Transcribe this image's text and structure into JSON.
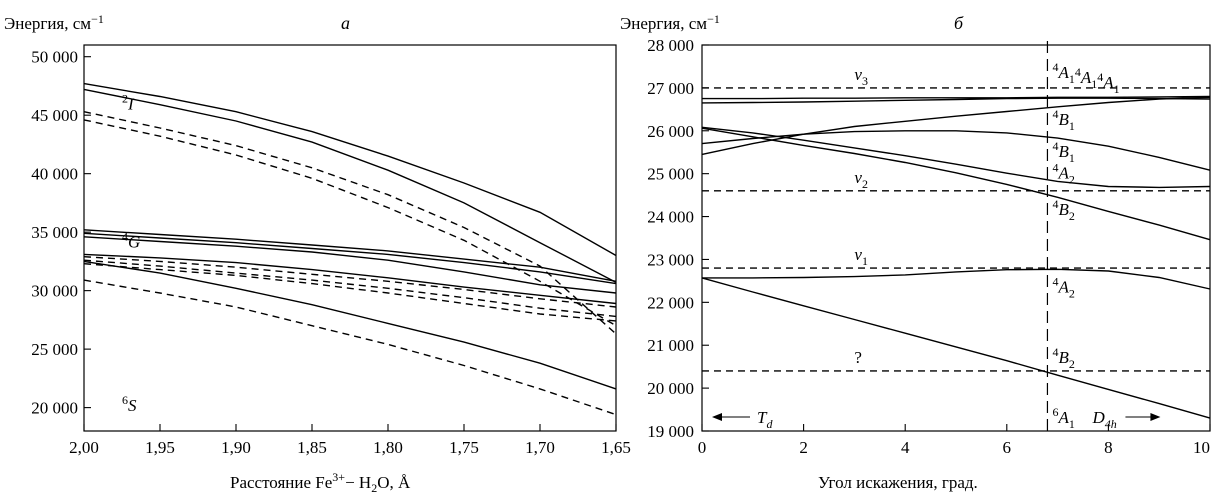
{
  "chart_data": [
    {
      "type": "line",
      "panel_label": "а",
      "ylabel_main": "Энергия, см",
      "ylabel_sup": "−1",
      "xlabel_parts": [
        "Расстояние Fe",
        "3+",
        "− H",
        "2",
        "O, Å"
      ],
      "x_reversed": true,
      "xlim": [
        2.0,
        1.65
      ],
      "ylim": [
        18000,
        51000
      ],
      "x_ticks": [
        2.0,
        1.95,
        1.9,
        1.85,
        1.8,
        1.75,
        1.7,
        1.65
      ],
      "x_tick_labels": [
        "2,00",
        "1,95",
        "1,90",
        "1,85",
        "1,80",
        "1,75",
        "1,70",
        "1,65"
      ],
      "y_ticks": [
        20000,
        25000,
        30000,
        35000,
        40000,
        45000,
        50000
      ],
      "y_tick_labels": [
        "20 000",
        "25 000",
        "30 000",
        "35 000",
        "40 000",
        "45 000",
        "50 000"
      ],
      "annotations": [
        {
          "sup": "2",
          "text": "I",
          "x": 1.975,
          "y": 45500
        },
        {
          "sup": "4",
          "text": "G",
          "x": 1.975,
          "y": 33700
        },
        {
          "sup": "6",
          "text": "S",
          "x": 1.975,
          "y": 19700
        }
      ],
      "x": [
        2.0,
        1.95,
        1.9,
        1.85,
        1.8,
        1.75,
        1.7,
        1.65
      ],
      "series": [
        {
          "style": "solid",
          "values": [
            47700,
            46600,
            45300,
            43600,
            41500,
            39200,
            36700,
            33000
          ]
        },
        {
          "style": "solid",
          "values": [
            47200,
            45900,
            44500,
            42700,
            40300,
            37500,
            34100,
            30700
          ]
        },
        {
          "style": "dashed",
          "values": [
            45300,
            43900,
            42400,
            40500,
            38200,
            35400,
            32100,
            26300
          ]
        },
        {
          "style": "dashed",
          "values": [
            44600,
            43200,
            41600,
            39600,
            37100,
            34300,
            30800,
            27000
          ]
        },
        {
          "style": "solid",
          "values": [
            35200,
            34800,
            34400,
            33900,
            33400,
            32700,
            32000,
            30800
          ]
        },
        {
          "style": "solid",
          "values": [
            34900,
            34500,
            34100,
            33600,
            33100,
            32400,
            31600,
            30600
          ]
        },
        {
          "style": "solid",
          "values": [
            34600,
            34200,
            33800,
            33300,
            32600,
            31600,
            30500,
            29800
          ]
        },
        {
          "style": "solid",
          "values": [
            33100,
            32800,
            32400,
            31800,
            31100,
            30300,
            29600,
            28900
          ]
        },
        {
          "style": "dashed",
          "values": [
            32900,
            32500,
            32000,
            31400,
            30800,
            30100,
            29300,
            28600
          ]
        },
        {
          "style": "dashed",
          "values": [
            32600,
            32100,
            31500,
            30900,
            30200,
            29400,
            28500,
            27800
          ]
        },
        {
          "style": "dashed",
          "values": [
            32300,
            31800,
            31300,
            30600,
            29800,
            28900,
            28000,
            27400
          ]
        },
        {
          "style": "solid",
          "values": [
            32500,
            31500,
            30200,
            28800,
            27200,
            25600,
            23800,
            21600
          ]
        },
        {
          "style": "dashed",
          "values": [
            30900,
            29800,
            28600,
            27000,
            25400,
            23600,
            21600,
            19400
          ]
        }
      ]
    },
    {
      "type": "line",
      "panel_label": "б",
      "ylabel_main": "Энергия, см",
      "ylabel_sup": "−1",
      "xlabel": "Угол искажения, град.",
      "xlim": [
        0,
        10
      ],
      "ylim": [
        19000,
        28000
      ],
      "x_ticks": [
        0,
        2,
        4,
        6,
        8,
        10
      ],
      "x_tick_labels": [
        "0",
        "2",
        "4",
        "6",
        "8",
        "10"
      ],
      "y_ticks": [
        19000,
        20000,
        21000,
        22000,
        23000,
        24000,
        25000,
        26000,
        27000,
        28000
      ],
      "y_tick_labels": [
        "19 000",
        "20 000",
        "21 000",
        "22 000",
        "23 000",
        "24 000",
        "25 000",
        "26 000",
        "27 000",
        "28 000"
      ],
      "vline_x": 6.8,
      "hlines": [
        {
          "y": 27000,
          "label": "v",
          "sub": "3",
          "x": 3.0
        },
        {
          "y": 24600,
          "label": "v",
          "sub": "2",
          "x": 3.0
        },
        {
          "y": 22800,
          "label": "v",
          "sub": "1",
          "x": 3.0
        },
        {
          "y": 20400,
          "label": "?",
          "sub": "",
          "x": 3.0
        }
      ],
      "term_labels": [
        {
          "parts": [
            [
              "4",
              "A",
              "1"
            ],
            [
              "4",
              "A",
              "1"
            ],
            [
              "4",
              "A",
              "1"
            ]
          ],
          "y": 27350
        },
        {
          "parts": [
            [
              "4",
              "B",
              "1"
            ]
          ],
          "y": 26250
        },
        {
          "parts": [
            [
              "4",
              "B",
              "1"
            ]
          ],
          "y": 25500
        },
        {
          "parts": [
            [
              "4",
              "A",
              "2"
            ]
          ],
          "y": 25000
        },
        {
          "parts": [
            [
              "4",
              "B",
              "2"
            ]
          ],
          "y": 24150
        },
        {
          "parts": [
            [
              "4",
              "A",
              "2"
            ]
          ],
          "y": 22350
        },
        {
          "parts": [
            [
              "4",
              "B",
              "2"
            ]
          ],
          "y": 20700
        },
        {
          "parts": [
            [
              "6",
              "A",
              "1"
            ]
          ],
          "y": 19300
        }
      ],
      "symmetry_left": {
        "text": "T",
        "sub": "d"
      },
      "symmetry_right": {
        "text": "D",
        "sub": "4h"
      },
      "x": [
        0,
        1,
        2,
        3,
        4,
        5,
        6,
        7,
        8,
        9,
        10
      ],
      "series": [
        {
          "style": "solid",
          "values": [
            26750,
            26750,
            26760,
            26760,
            26770,
            26770,
            26770,
            26780,
            26780,
            26790,
            26800
          ]
        },
        {
          "style": "solid",
          "values": [
            26650,
            26660,
            26670,
            26690,
            26710,
            26730,
            26750,
            26760,
            26760,
            26750,
            26740
          ]
        },
        {
          "style": "solid",
          "values": [
            25450,
            25700,
            25920,
            26100,
            26220,
            26340,
            26450,
            26560,
            26660,
            26740,
            26780
          ]
        },
        {
          "style": "solid",
          "values": [
            25700,
            25820,
            25920,
            25980,
            26000,
            26000,
            25950,
            25830,
            25640,
            25380,
            25080
          ]
        },
        {
          "style": "solid",
          "values": [
            26080,
            25950,
            25780,
            25600,
            25420,
            25220,
            25010,
            24820,
            24700,
            24680,
            24700
          ]
        },
        {
          "style": "solid",
          "values": [
            26060,
            25860,
            25660,
            25470,
            25260,
            25020,
            24750,
            24450,
            24120,
            23800,
            23460
          ]
        },
        {
          "style": "solid",
          "values": [
            22570,
            22570,
            22580,
            22600,
            22640,
            22710,
            22760,
            22770,
            22730,
            22580,
            22310
          ]
        },
        {
          "style": "solid",
          "values": [
            22570,
            22240,
            21920,
            21600,
            21280,
            20960,
            20640,
            20300,
            19970,
            19640,
            19300
          ]
        }
      ]
    }
  ]
}
